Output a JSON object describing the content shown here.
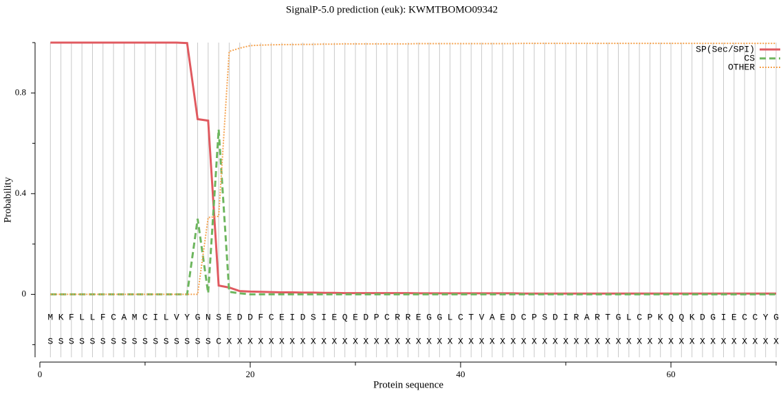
{
  "chart_data": {
    "type": "line",
    "title": "SignalP-5.0 prediction (euk):  KWMTBOMO09342",
    "xlabel": "Protein sequence",
    "ylabel": "Probability",
    "x": [
      1,
      2,
      3,
      4,
      5,
      6,
      7,
      8,
      9,
      10,
      11,
      12,
      13,
      14,
      15,
      16,
      17,
      18,
      19,
      20,
      21,
      22,
      23,
      24,
      25,
      26,
      27,
      28,
      29,
      30,
      31,
      32,
      33,
      34,
      35,
      36,
      37,
      38,
      39,
      40,
      41,
      42,
      43,
      44,
      45,
      46,
      47,
      48,
      49,
      50,
      51,
      52,
      53,
      54,
      55,
      56,
      57,
      58,
      59,
      60,
      61,
      62,
      63,
      64,
      65,
      66,
      67,
      68,
      69,
      70
    ],
    "sequence": [
      "M",
      "K",
      "F",
      "L",
      "L",
      "F",
      "C",
      "A",
      "M",
      "C",
      "I",
      "L",
      "V",
      "Y",
      "G",
      "N",
      "S",
      "E",
      "D",
      "D",
      "F",
      "C",
      "E",
      "I",
      "D",
      "S",
      "I",
      "E",
      "Q",
      "E",
      "D",
      "P",
      "C",
      "R",
      "R",
      "E",
      "G",
      "G",
      "L",
      "C",
      "T",
      "V",
      "A",
      "E",
      "D",
      "C",
      "P",
      "S",
      "D",
      "I",
      "R",
      "A",
      "R",
      "T",
      "G",
      "L",
      "C",
      "P",
      "K",
      "Q",
      "Q",
      "K",
      "D",
      "G",
      "I",
      "E",
      "C",
      "C",
      "Y",
      "G"
    ],
    "annotation": [
      "S",
      "S",
      "S",
      "S",
      "S",
      "S",
      "S",
      "S",
      "S",
      "S",
      "S",
      "S",
      "S",
      "S",
      "S",
      "S",
      "C",
      "X",
      "X",
      "X",
      "X",
      "X",
      "X",
      "X",
      "X",
      "X",
      "X",
      "X",
      "X",
      "X",
      "X",
      "X",
      "X",
      "X",
      "X",
      "X",
      "X",
      "X",
      "X",
      "X",
      "X",
      "X",
      "X",
      "X",
      "X",
      "X",
      "X",
      "X",
      "X",
      "X",
      "X",
      "X",
      "X",
      "X",
      "X",
      "X",
      "X",
      "X",
      "X",
      "X",
      "X",
      "X",
      "X",
      "X",
      "X",
      "X",
      "X",
      "X",
      "X",
      "X"
    ],
    "series": [
      {
        "name": "SP(Sec/SPI)",
        "color": "#e05a60",
        "style": "solid",
        "values": [
          1,
          1,
          1,
          1,
          1,
          1,
          1,
          1,
          1,
          1,
          1,
          1,
          1,
          0.998,
          0.696,
          0.69,
          0.035,
          0.027,
          0.013,
          0.011,
          0.01,
          0.009,
          0.008,
          0.008,
          0.007,
          0.007,
          0.006,
          0.006,
          0.005,
          0.005,
          0.005,
          0.005,
          0.005,
          0.005,
          0.005,
          0.004,
          0.004,
          0.004,
          0.004,
          0.004,
          0.004,
          0.004,
          0.004,
          0.004,
          0.004,
          0.003,
          0.003,
          0.003,
          0.003,
          0.003,
          0.003,
          0.003,
          0.003,
          0.003,
          0.003,
          0.003,
          0.003,
          0.003,
          0.003,
          0.003,
          0.003,
          0.003,
          0.003,
          0.003,
          0.003,
          0.003,
          0.003,
          0.003,
          0.003,
          0.003
        ]
      },
      {
        "name": "CS",
        "color": "#6db65e",
        "style": "dashed",
        "values": [
          0,
          0,
          0,
          0,
          0,
          0,
          0,
          0,
          0,
          0,
          0,
          0,
          0,
          0,
          0.3,
          0.005,
          0.655,
          0.01,
          0.004,
          0,
          0,
          0,
          0,
          0,
          0,
          0,
          0,
          0,
          0,
          0,
          0,
          0,
          0,
          0,
          0,
          0,
          0,
          0,
          0,
          0,
          0,
          0,
          0,
          0,
          0,
          0,
          0,
          0,
          0,
          0,
          0,
          0,
          0,
          0,
          0,
          0,
          0,
          0,
          0,
          0,
          0,
          0,
          0,
          0,
          0,
          0,
          0,
          0,
          0,
          0
        ]
      },
      {
        "name": "OTHER",
        "color": "#f5a04a",
        "style": "dotted",
        "values": [
          0,
          0,
          0,
          0,
          0,
          0,
          0,
          0,
          0,
          0,
          0,
          0,
          0,
          0,
          0,
          0.305,
          0.31,
          0.965,
          0.978,
          0.988,
          0.99,
          0.991,
          0.992,
          0.992,
          0.993,
          0.993,
          0.994,
          0.994,
          0.995,
          0.995,
          0.995,
          0.995,
          0.995,
          0.995,
          0.995,
          0.996,
          0.996,
          0.996,
          0.996,
          0.996,
          0.996,
          0.996,
          0.996,
          0.996,
          0.996,
          0.997,
          0.997,
          0.997,
          0.997,
          0.997,
          0.997,
          0.997,
          0.997,
          0.997,
          0.997,
          0.997,
          0.997,
          0.997,
          0.997,
          0.997,
          0.997,
          0.997,
          0.997,
          0.997,
          0.997,
          0.997,
          0.997,
          0.997,
          0.997,
          0.997
        ]
      }
    ],
    "xlim": [
      0,
      70
    ],
    "xticks": [
      0,
      20,
      40,
      60
    ],
    "xminor": [
      10,
      30,
      50,
      70
    ],
    "ylim": [
      -0.25,
      1
    ],
    "yticks": [
      0,
      0.4,
      0.8
    ],
    "yminor": [
      -0.2,
      0.2,
      0.6,
      1
    ],
    "grid": true,
    "legend": "upper right"
  }
}
